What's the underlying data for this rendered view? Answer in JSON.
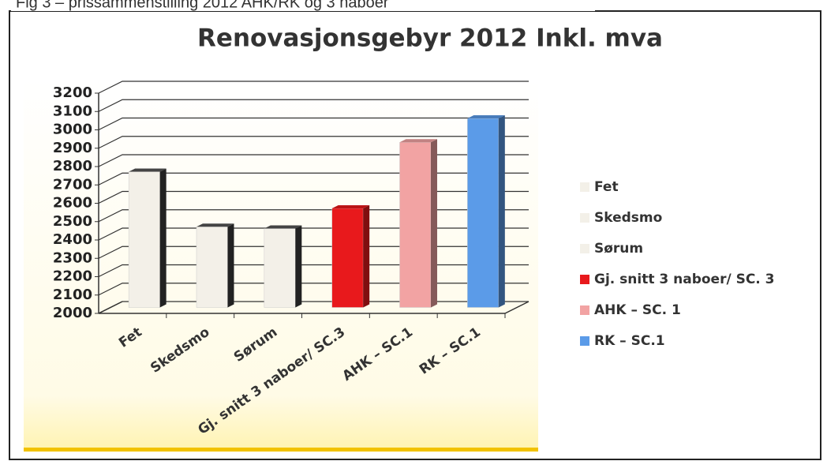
{
  "caption": "Fig 3 – prissammenstilling 2012 AHK/RK og 3 naboer",
  "chart_data": {
    "type": "bar3d",
    "title": "Renovasjonsgebyr 2012 Inkl. mva",
    "categories": [
      "Fet",
      "Skedsmo",
      "Sørum",
      "Gj. snitt 3 naboer/ SC.3",
      "AHK – SC.1",
      "RK – SC.1"
    ],
    "legend_labels": [
      "Fet",
      "Skedsmo",
      "Sørum",
      "Gj. snitt 3 naboer/ SC. 3",
      "AHK – SC. 1",
      "RK – SC.1"
    ],
    "values": [
      2740,
      2440,
      2430,
      2540,
      2900,
      3030
    ],
    "colors": [
      "#f3f0e8",
      "#f3f0e8",
      "#f3f0e8",
      "#e8191c",
      "#f2a3a3",
      "#5b9be8"
    ],
    "ylim": [
      2000,
      3200
    ],
    "yticks": [
      2000,
      2100,
      2200,
      2300,
      2400,
      2500,
      2600,
      2700,
      2800,
      2900,
      3000,
      3100,
      3200
    ],
    "grid": true,
    "legend": "right"
  }
}
